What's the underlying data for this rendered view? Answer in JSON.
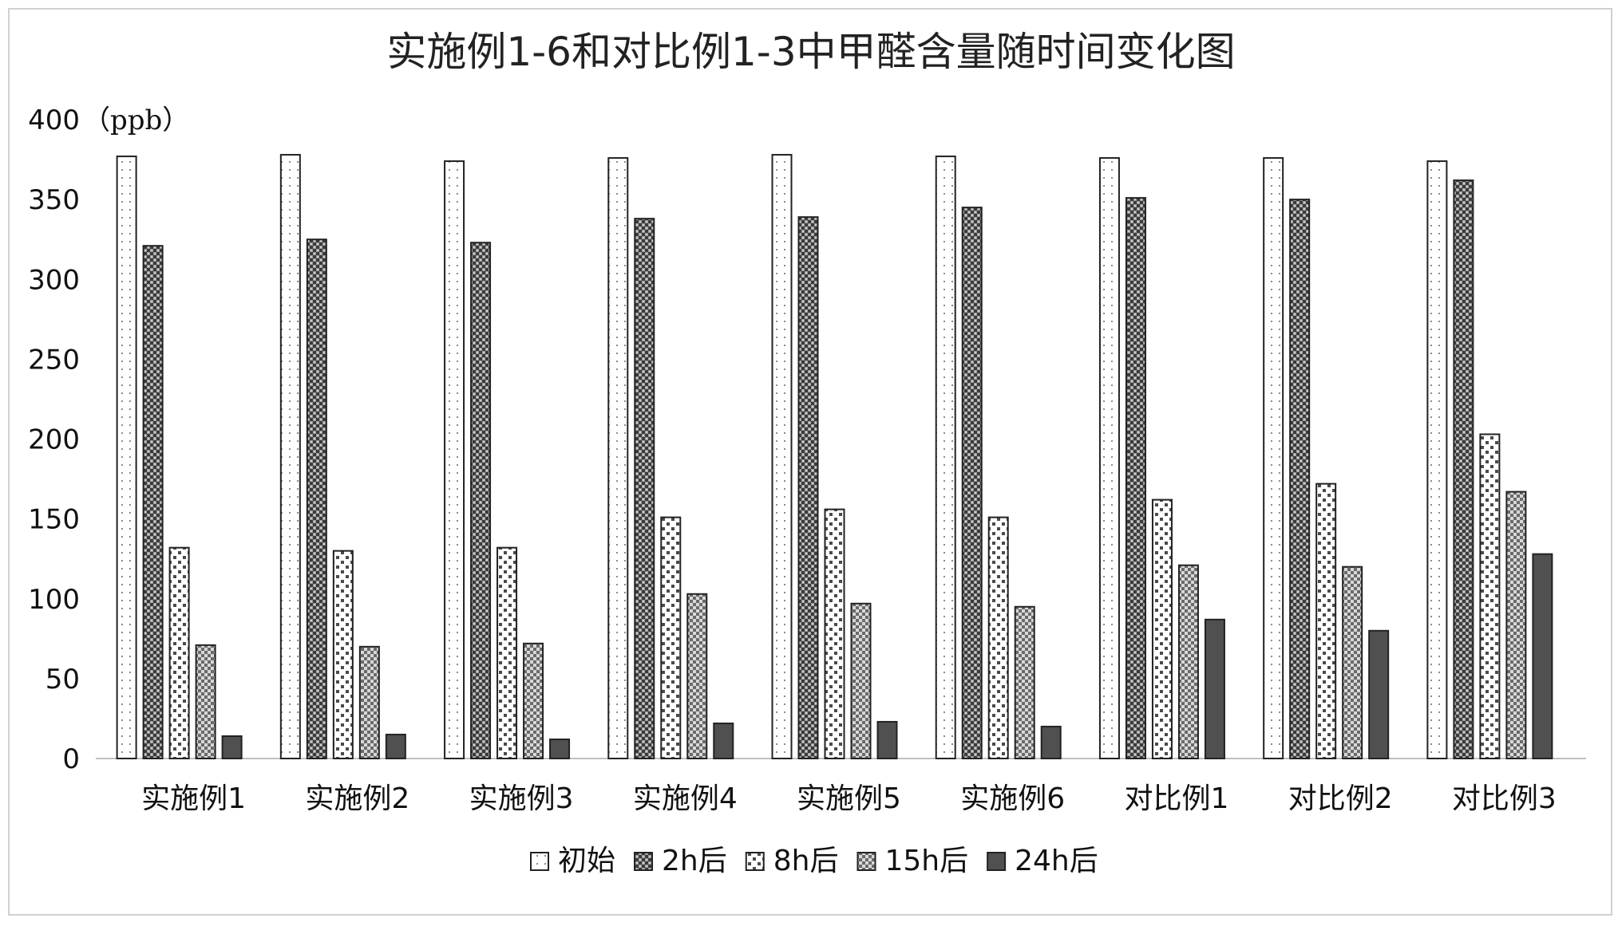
{
  "chart_data": {
    "type": "bar",
    "title": "实施例1-6和对比例1-3中甲醛含量随时间变化图",
    "y_unit": "（ppb）",
    "xlabel": "",
    "ylabel": "",
    "ylim": [
      0,
      400
    ],
    "y_ticks": [
      0,
      50,
      100,
      150,
      200,
      250,
      300,
      350,
      400
    ],
    "grid": false,
    "legend_position": "bottom",
    "categories": [
      "实施例1",
      "实施例2",
      "实施例3",
      "实施例4",
      "实施例5",
      "实施例6",
      "对比例1",
      "对比例2",
      "对比例3"
    ],
    "series": [
      {
        "name": "初始",
        "pattern": "dots-light",
        "values": [
          377,
          378,
          374,
          376,
          378,
          377,
          376,
          376,
          374
        ]
      },
      {
        "name": "2h后",
        "pattern": "checker-dense",
        "values": [
          321,
          325,
          323,
          338,
          339,
          345,
          351,
          350,
          362
        ]
      },
      {
        "name": "8h后",
        "pattern": "checker-open",
        "values": [
          132,
          130,
          132,
          151,
          156,
          151,
          162,
          172,
          203
        ]
      },
      {
        "name": "15h后",
        "pattern": "checker-fine",
        "values": [
          71,
          70,
          72,
          103,
          97,
          95,
          121,
          120,
          167
        ]
      },
      {
        "name": "24h后",
        "pattern": "solid-dark",
        "values": [
          14,
          15,
          12,
          22,
          23,
          20,
          87,
          80,
          128
        ]
      }
    ],
    "colors": {
      "outline": "#222222",
      "dark_fill": "#505050",
      "axis": "#bfbfbf"
    }
  }
}
